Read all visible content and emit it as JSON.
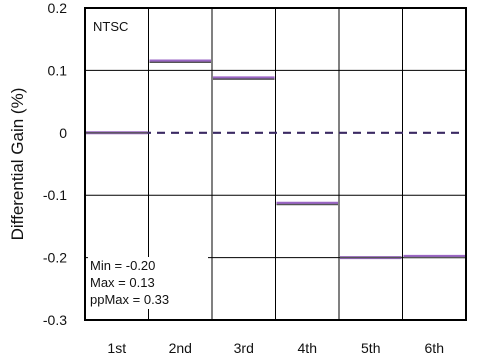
{
  "chart_data": {
    "type": "line",
    "categories": [
      "1st",
      "2nd",
      "3rd",
      "4th",
      "5th",
      "6th"
    ],
    "ylabel": "Differential Gain (%)",
    "ylim": [
      -0.3,
      0.2
    ],
    "yticks": [
      "0.2",
      "0.1",
      "0",
      "-0.1",
      "-0.2",
      "-0.3"
    ],
    "grid": true,
    "legend_text": "NTSC",
    "stats": [
      "Min = -0.20",
      "Max = 0.13",
      "ppMax = 0.33"
    ],
    "colors": {
      "series_primary": "#9a66c4",
      "series_secondary": "#555555",
      "dashed": "#3b2a63",
      "grid": "#000000"
    },
    "series": [
      {
        "values": [
          0.0,
          0.115,
          0.088,
          -0.113,
          -0.2,
          -0.198
        ]
      },
      {
        "values": [
          0.0,
          0.113,
          0.086,
          -0.115,
          -0.2,
          -0.2
        ]
      }
    ]
  }
}
